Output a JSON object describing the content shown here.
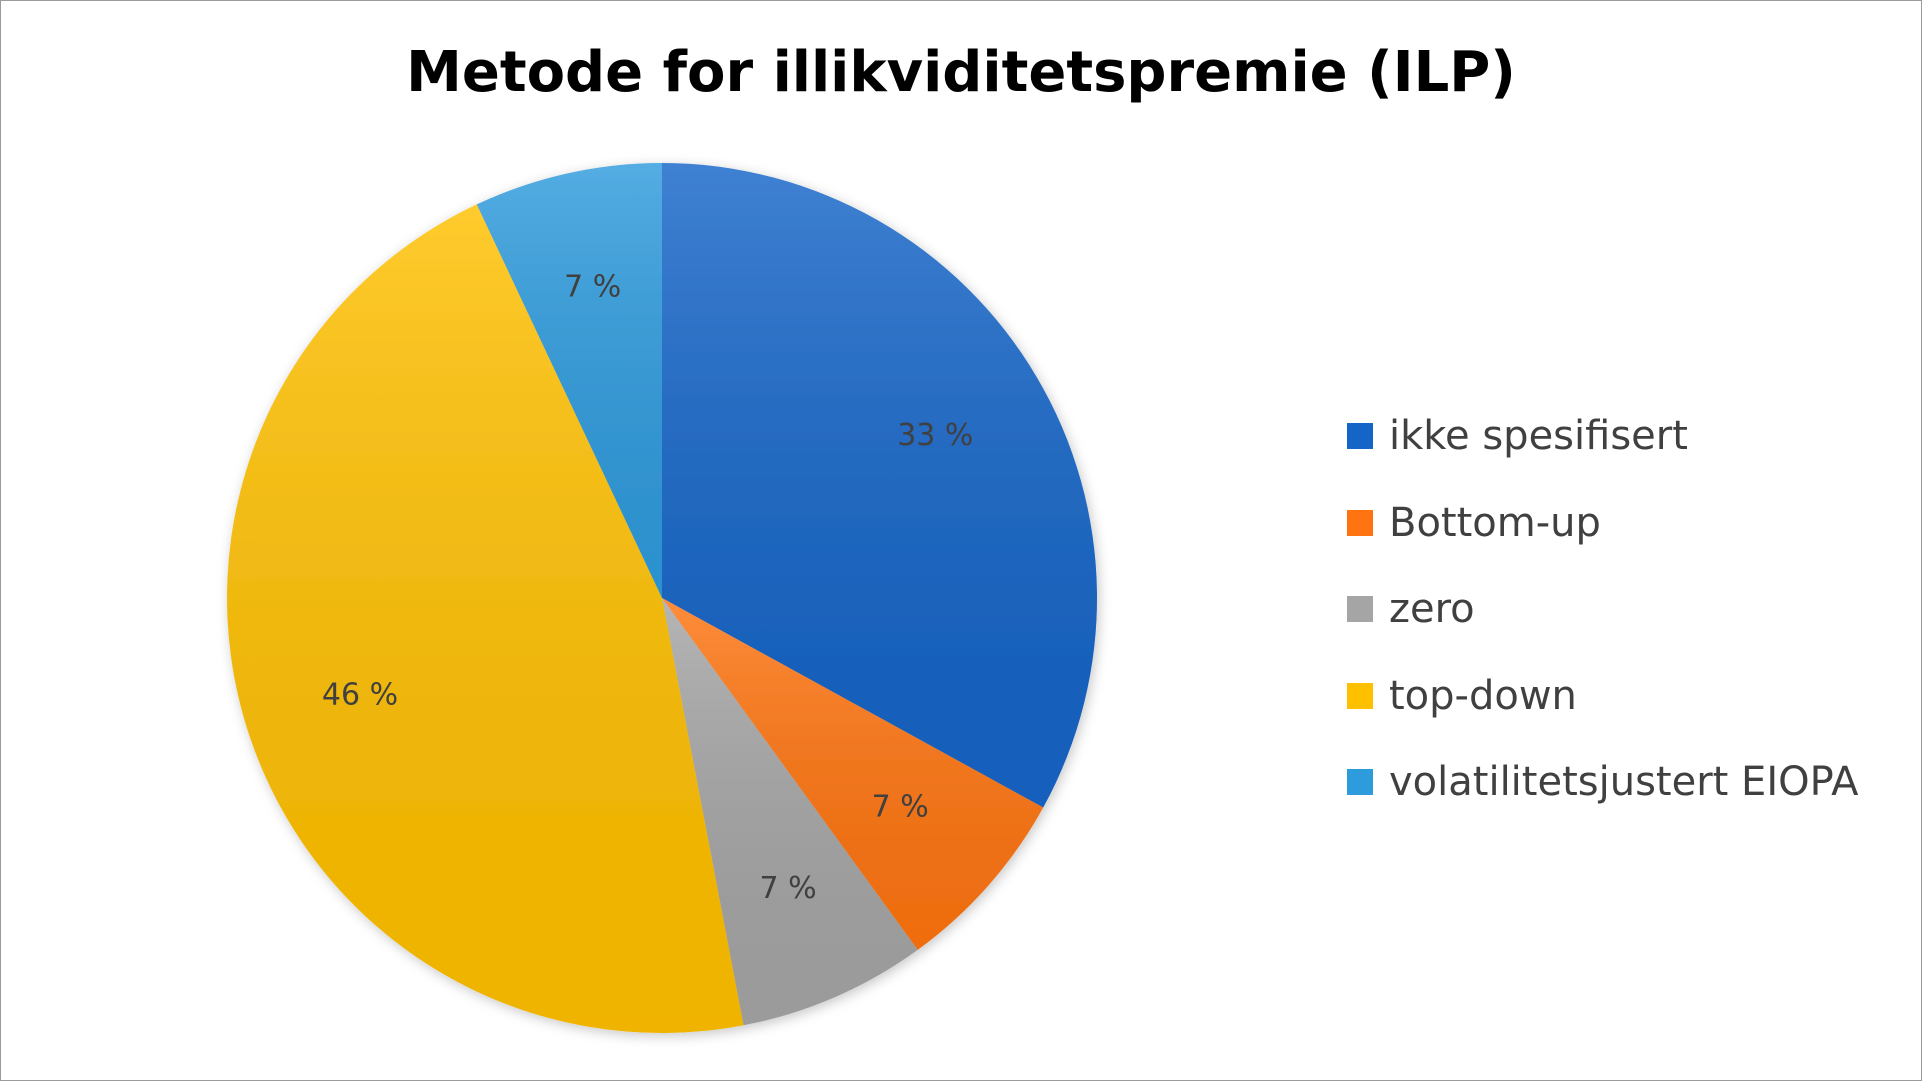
{
  "chart_data": {
    "type": "pie",
    "title": "Metode for illikviditetspremie (ILP)",
    "slices": [
      {
        "name": "ikke spesifisert",
        "value": 33,
        "label": "33 %",
        "color": "#1565C8"
      },
      {
        "name": "Bottom-up",
        "value": 7,
        "label": "7 %",
        "color": "#FF7410"
      },
      {
        "name": "zero",
        "value": 7,
        "label": "7 %",
        "color": "#A5A5A5"
      },
      {
        "name": "top-down",
        "value": 46,
        "label": "46 %",
        "color": "#FFC000"
      },
      {
        "name": "volatilitetsjustert EIOPA",
        "value": 7,
        "label": "7 %",
        "color": "#2E9BDD"
      }
    ],
    "legend_position": "right"
  }
}
